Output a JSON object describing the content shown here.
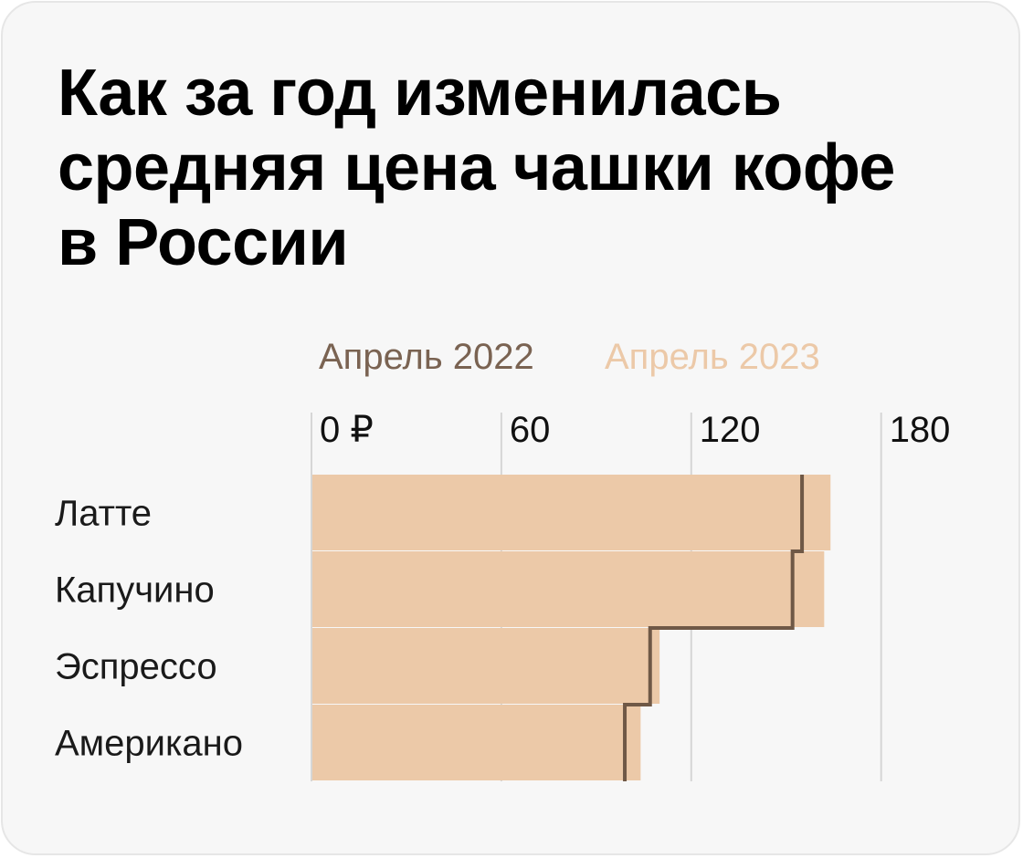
{
  "title_lines": [
    "Как за год изменилась",
    "средняя цена чашки кофе",
    "в России"
  ],
  "colors": {
    "background": "#f7f7f7",
    "bar_2023": "#ecc9a8",
    "line_2022": "#6f5846",
    "legend_2022": "#7a6352",
    "legend_2023": "#ecc9a8",
    "grid": "#d6d6d6",
    "text": "#1a1a1a"
  },
  "chart_data": {
    "type": "bar",
    "orientation": "horizontal",
    "title": "Как за год изменилась средняя цена чашки кофе в России",
    "categories": [
      "Латте",
      "Капучино",
      "Эспрессо",
      "Американо"
    ],
    "series": [
      {
        "name": "Апрель 2022",
        "mark": "step-line",
        "values": [
          155,
          152,
          107,
          99
        ]
      },
      {
        "name": "Апрель 2023",
        "mark": "bar",
        "values": [
          164,
          162,
          110,
          104
        ]
      }
    ],
    "x_ticks": [
      0,
      60,
      120,
      180
    ],
    "x_tick_labels": [
      "0 ₽",
      "60",
      "120",
      "180"
    ],
    "xlim": [
      0,
      180
    ],
    "xlabel": "",
    "ylabel": "",
    "grid": true,
    "legend_position": "top"
  }
}
